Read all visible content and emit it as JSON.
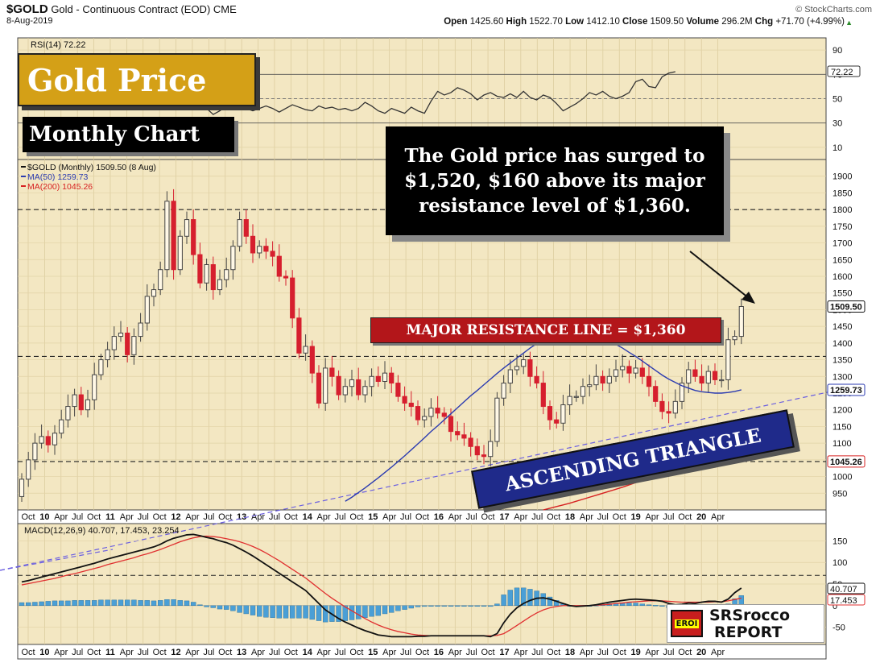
{
  "header": {
    "symbol": "$GOLD",
    "description": "Gold - Continuous Contract (EOD)",
    "exchange": "CME",
    "date": "8-Aug-2019",
    "watermark": "© StockCharts.com",
    "ohlc": [
      {
        "label": "Open",
        "value": "1425.60"
      },
      {
        "label": "High",
        "value": "1522.70"
      },
      {
        "label": "Low",
        "value": "1412.10"
      },
      {
        "label": "Close",
        "value": "1509.50"
      },
      {
        "label": "Volume",
        "value": "296.2M"
      },
      {
        "label": "Chg",
        "value": "+71.70 (+4.99%)"
      }
    ]
  },
  "title_box": {
    "text": "Gold Price",
    "bg": "#d4a017"
  },
  "subtitle_box": {
    "text": "Monthly Chart"
  },
  "callout": {
    "text": "The Gold price has surged to $1,520, $160 above its major resistance level of $1,360."
  },
  "resistance_label": {
    "text": "MAJOR RESISTANCE LINE = $1,360",
    "bg": "#b3161a"
  },
  "triangle_label": {
    "text": "ASCENDING TRIANGLE",
    "bg": "#1f2a8a"
  },
  "logo": {
    "text1": "EROI",
    "text2": "SRSrocco",
    "text3": "REPORT"
  },
  "colors": {
    "panel_bg": "#f3e7c2",
    "up": "#444444",
    "down": "#d61f2e",
    "ma50": "#2b3bb0",
    "ma200": "#d62020",
    "macd_hist": "#4a9fd6"
  },
  "chart_data": [
    {
      "id": "rsi",
      "type": "line",
      "label": "RSI(14) 72.22",
      "ylim": [
        0,
        100
      ],
      "yticks": [
        10,
        30,
        50,
        70,
        90
      ],
      "reference_lines": [
        30,
        50,
        70
      ],
      "last_value": "72.22",
      "values": [
        50,
        54,
        58,
        61,
        60,
        57,
        56,
        60,
        63,
        66,
        69,
        72,
        70,
        66,
        64,
        63,
        61,
        60,
        58,
        60,
        59,
        56,
        52,
        51,
        49,
        48,
        50,
        44,
        42,
        37,
        40,
        44,
        46,
        44,
        42,
        40,
        42,
        44,
        42,
        39,
        42,
        45,
        43,
        41,
        40,
        44,
        42,
        43,
        41,
        42,
        40,
        42,
        47,
        44,
        40,
        38,
        42,
        40,
        38,
        43,
        40,
        38,
        48,
        56,
        53,
        55,
        59,
        57,
        54,
        49,
        53,
        55,
        52,
        51,
        54,
        51,
        56,
        51,
        49,
        53,
        51,
        46,
        40,
        43,
        46,
        50,
        55,
        53,
        56,
        52,
        50,
        52,
        55,
        64,
        66,
        60,
        59,
        68,
        71,
        72.22
      ]
    },
    {
      "id": "price",
      "type": "candlestick",
      "legend": [
        "$GOLD (Monthly) 1509.50 (8 Aug)",
        "MA(50) 1259.73",
        "MA(200) 1045.26"
      ],
      "ylim": [
        900,
        1950
      ],
      "yticks": [
        950,
        1000,
        1050,
        1100,
        1150,
        1200,
        1250,
        1300,
        1350,
        1400,
        1450,
        1500,
        1550,
        1600,
        1650,
        1700,
        1750,
        1800,
        1850,
        1900
      ],
      "x_labels": [
        "Oct",
        "10",
        "Apr",
        "Jul",
        "Oct",
        "11",
        "Apr",
        "Jul",
        "Oct",
        "12",
        "Apr",
        "Jul",
        "Oct",
        "13",
        "Apr",
        "Jul",
        "Oct",
        "14",
        "Apr",
        "Jul",
        "Oct",
        "15",
        "Apr",
        "Jul",
        "Oct",
        "16",
        "Apr",
        "Jul",
        "Oct",
        "17",
        "Apr",
        "Jul",
        "Oct",
        "18",
        "Apr",
        "Jul",
        "Oct",
        "19",
        "Apr",
        "Jul",
        "Oct",
        "20",
        "Apr"
      ],
      "bold_labels": [
        "10",
        "11",
        "12",
        "13",
        "14",
        "15",
        "16",
        "17",
        "18",
        "19",
        "20"
      ],
      "resistance_levels": [
        1800,
        1360,
        1045
      ],
      "close_label": "1509.50",
      "ma50_label": "1259.73",
      "ma200_label": "1045.26",
      "closes": [
        992,
        1050,
        1100,
        1120,
        1095,
        1130,
        1170,
        1210,
        1245,
        1200,
        1230,
        1305,
        1350,
        1380,
        1420,
        1430,
        1365,
        1420,
        1460,
        1540,
        1560,
        1620,
        1825,
        1620,
        1720,
        1770,
        1665,
        1580,
        1635,
        1560,
        1590,
        1620,
        1690,
        1770,
        1720,
        1670,
        1690,
        1675,
        1660,
        1600,
        1595,
        1475,
        1370,
        1390,
        1310,
        1220,
        1325,
        1300,
        1245,
        1270,
        1290,
        1245,
        1270,
        1300,
        1285,
        1310,
        1280,
        1240,
        1220,
        1210,
        1170,
        1180,
        1205,
        1190,
        1180,
        1135,
        1125,
        1115,
        1090,
        1065,
        1060,
        1105,
        1235,
        1280,
        1320,
        1330,
        1350,
        1300,
        1280,
        1210,
        1170,
        1160,
        1215,
        1240,
        1240,
        1270,
        1275,
        1300,
        1280,
        1300,
        1320,
        1330,
        1310,
        1325,
        1300,
        1270,
        1225,
        1195,
        1190,
        1225,
        1280,
        1320,
        1300,
        1280,
        1315,
        1290,
        1290,
        1410,
        1420,
        1509.5
      ],
      "ma50": [
        null,
        null,
        null,
        null,
        null,
        null,
        null,
        null,
        null,
        null,
        null,
        null,
        null,
        null,
        null,
        null,
        null,
        null,
        null,
        null,
        null,
        null,
        null,
        null,
        null,
        null,
        null,
        null,
        null,
        null,
        null,
        null,
        null,
        null,
        null,
        null,
        null,
        null,
        null,
        null,
        null,
        null,
        null,
        null,
        null,
        null,
        null,
        null,
        null,
        926,
        938,
        952,
        966,
        981,
        996,
        1012,
        1028,
        1045,
        1062,
        1080,
        1098,
        1116,
        1135,
        1152,
        1170,
        1188,
        1206,
        1224,
        1242,
        1258,
        1275,
        1292,
        1309,
        1325,
        1340,
        1355,
        1370,
        1385,
        1398,
        1410,
        1420,
        1428,
        1432,
        1435,
        1434,
        1432,
        1428,
        1422,
        1415,
        1406,
        1396,
        1385,
        1372,
        1360,
        1346,
        1332,
        1318,
        1304,
        1292,
        1282,
        1272,
        1265,
        1258,
        1254,
        1252,
        1250,
        1250,
        1252,
        1255,
        1259.73
      ],
      "ma200": [
        null,
        null,
        null,
        null,
        null,
        null,
        null,
        null,
        null,
        null,
        null,
        null,
        null,
        null,
        null,
        null,
        null,
        null,
        null,
        null,
        null,
        null,
        null,
        null,
        null,
        null,
        null,
        null,
        null,
        null,
        null,
        null,
        null,
        null,
        null,
        null,
        null,
        null,
        null,
        null,
        null,
        null,
        null,
        null,
        null,
        null,
        null,
        null,
        null,
        null,
        null,
        null,
        null,
        null,
        null,
        null,
        null,
        null,
        null,
        null,
        null,
        null,
        null,
        null,
        null,
        null,
        null,
        null,
        null,
        null,
        null,
        null,
        null,
        null,
        null,
        null,
        null,
        null,
        null,
        900,
        905,
        910,
        915,
        920,
        926,
        932,
        938,
        944,
        950,
        956,
        962,
        968,
        975,
        982,
        989,
        996,
        1003,
        1008,
        1012,
        1016,
        1020,
        1024,
        1028,
        1031,
        1034,
        1037,
        1039,
        1041,
        1043,
        1045.26
      ]
    },
    {
      "id": "macd",
      "type": "line+histogram",
      "label": "MACD(12,26,9) 40.707, 17.453, 23.254",
      "ylim": [
        -90,
        190
      ],
      "yticks": [
        -50,
        0,
        50,
        100,
        150
      ],
      "reference_lines": [
        70
      ],
      "macd_label": "40.707",
      "signal_label": "17.453",
      "macd": [
        55,
        58,
        62,
        66,
        70,
        74,
        78,
        82,
        86,
        90,
        94,
        98,
        103,
        108,
        112,
        116,
        120,
        124,
        128,
        132,
        136,
        142,
        150,
        156,
        160,
        164,
        165,
        162,
        158,
        155,
        150,
        146,
        140,
        132,
        124,
        115,
        105,
        95,
        85,
        75,
        65,
        55,
        45,
        35,
        20,
        5,
        -10,
        -20,
        -30,
        -38,
        -45,
        -52,
        -58,
        -63,
        -68,
        -70,
        -72,
        -72,
        -72,
        -72,
        -71,
        -71,
        -70,
        -70,
        -70,
        -70,
        -70,
        -70,
        -70,
        -70,
        -70,
        -72,
        -65,
        -40,
        -20,
        -5,
        5,
        12,
        17,
        18,
        15,
        10,
        5,
        0,
        -2,
        -1,
        0,
        2,
        5,
        8,
        10,
        12,
        14,
        15,
        14,
        13,
        12,
        10,
        5,
        2,
        3,
        6,
        5,
        8,
        10,
        10,
        8,
        15,
        30,
        40.707
      ],
      "signal": [
        48,
        51,
        54,
        57,
        60,
        63,
        67,
        71,
        74,
        78,
        82,
        86,
        90,
        95,
        99,
        103,
        107,
        111,
        116,
        120,
        125,
        130,
        136,
        142,
        148,
        153,
        157,
        160,
        161,
        160,
        158,
        155,
        152,
        148,
        143,
        137,
        130,
        122,
        113,
        104,
        94,
        84,
        74,
        64,
        52,
        40,
        28,
        17,
        7,
        -3,
        -12,
        -21,
        -30,
        -38,
        -45,
        -51,
        -56,
        -60,
        -63,
        -66,
        -68,
        -69,
        -70,
        -70,
        -70,
        -70,
        -70,
        -70,
        -70,
        -70,
        -70,
        -70,
        -69,
        -65,
        -56,
        -46,
        -36,
        -26,
        -17,
        -10,
        -5,
        -2,
        0,
        0,
        0,
        0,
        0,
        1,
        2,
        3,
        5,
        6,
        8,
        9,
        10,
        11,
        11,
        11,
        10,
        9,
        8,
        8,
        8,
        8,
        8,
        9,
        9,
        11,
        14,
        17.453
      ]
    }
  ]
}
